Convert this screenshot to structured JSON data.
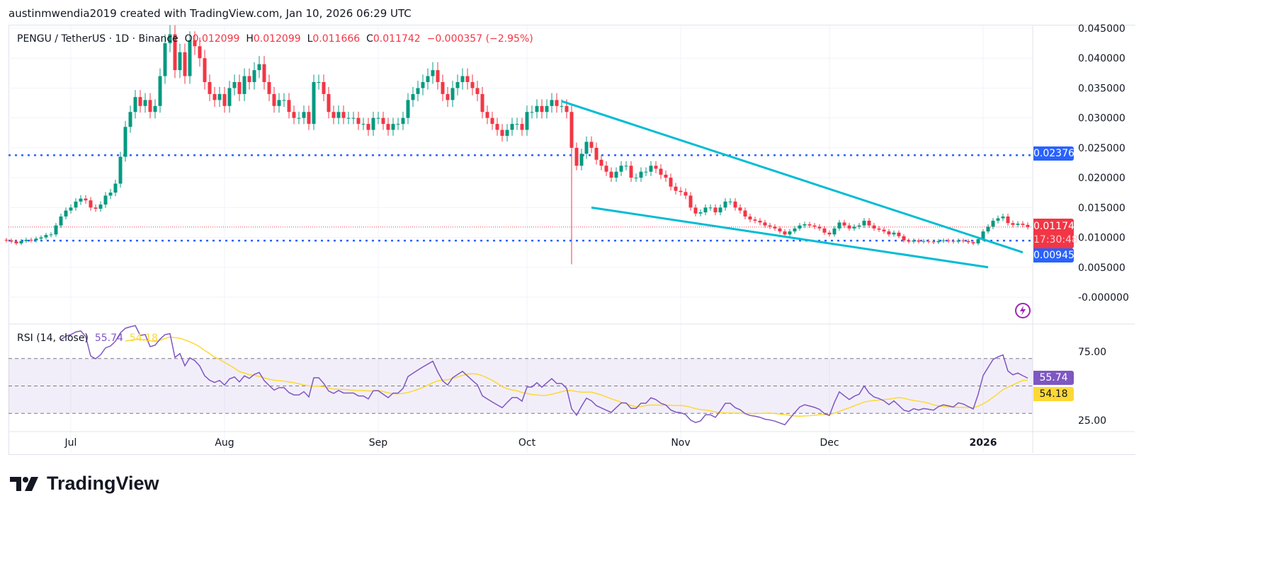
{
  "credit": "austinmwendia2019 created with TradingView.com, Jan 10, 2026 06:29 UTC",
  "legend": {
    "symbol": "PENGU / TetherUS · 1D · Binance",
    "o_label": "O",
    "o": "0.012099",
    "h_label": "H",
    "h": "0.012099",
    "l_label": "L",
    "l": "0.011666",
    "c_label": "C",
    "c": "0.011742",
    "change": "−0.000357 (−2.95%)"
  },
  "rsi_legend": {
    "label": "RSI (14, close)",
    "rsi": "55.74",
    "ma": "54.18"
  },
  "tags": {
    "resistance": "0.023763",
    "price": "0.011742",
    "countdown": "17:30:48",
    "support": "0.009453",
    "rsi": "55.74",
    "rsi_ma": "54.18"
  },
  "logo": "TradingView",
  "icons": {
    "alert": "lightning-bolt-icon"
  },
  "colors": {
    "up": "#089981",
    "down": "#f23645",
    "trendline": "#00bcd4",
    "level": "#2962ff",
    "rsi": "#7e57c2",
    "rsi_ma": "#fdd835",
    "rsi_band": "#7e57c2"
  },
  "chart_data": {
    "type": "candlestick",
    "symbol": "PENGU/USDT",
    "interval": "1D",
    "end_date": "2026-01-10",
    "price_ticks": [
      "0.045000",
      "0.040000",
      "0.035000",
      "0.030000",
      "0.025000",
      "0.020000",
      "0.015000",
      "0.010000",
      "0.005000",
      "-0.000000"
    ],
    "ylim": [
      0,
      0.045
    ],
    "x_ticks": [
      {
        "label": "Jul",
        "date": "2025-07-01"
      },
      {
        "label": "Aug",
        "date": "2025-08-01"
      },
      {
        "label": "Sep",
        "date": "2025-09-01"
      },
      {
        "label": "Oct",
        "date": "2025-10-01"
      },
      {
        "label": "Nov",
        "date": "2025-11-01"
      },
      {
        "label": "Dec",
        "date": "2025-12-01"
      },
      {
        "label": "2026",
        "date": "2026-01-01"
      }
    ],
    "close": [
      0.0098,
      0.0097,
      0.0096,
      0.0095,
      0.0093,
      0.009,
      0.0094,
      0.0096,
      0.0095,
      0.0098,
      0.01,
      0.0104,
      0.0105,
      0.012,
      0.0135,
      0.0145,
      0.015,
      0.016,
      0.0165,
      0.0162,
      0.015,
      0.0148,
      0.0155,
      0.017,
      0.0175,
      0.019,
      0.0235,
      0.0285,
      0.031,
      0.0335,
      0.032,
      0.033,
      0.031,
      0.032,
      0.037,
      0.0425,
      0.044,
      0.038,
      0.041,
      0.037,
      0.043,
      0.042,
      0.04,
      0.036,
      0.034,
      0.033,
      0.034,
      0.032,
      0.035,
      0.036,
      0.034,
      0.037,
      0.036,
      0.038,
      0.039,
      0.036,
      0.034,
      0.032,
      0.033,
      0.033,
      0.031,
      0.03,
      0.03,
      0.031,
      0.029,
      0.036,
      0.036,
      0.034,
      0.031,
      0.03,
      0.031,
      0.03,
      0.03,
      0.03,
      0.029,
      0.029,
      0.028,
      0.03,
      0.03,
      0.029,
      0.028,
      0.029,
      0.029,
      0.03,
      0.033,
      0.034,
      0.035,
      0.036,
      0.037,
      0.038,
      0.036,
      0.034,
      0.033,
      0.035,
      0.036,
      0.037,
      0.036,
      0.035,
      0.034,
      0.031,
      0.03,
      0.029,
      0.028,
      0.027,
      0.028,
      0.029,
      0.029,
      0.028,
      0.031,
      0.031,
      0.032,
      0.031,
      0.032,
      0.033,
      0.032,
      0.032,
      0.031,
      0.025,
      0.022,
      0.024,
      0.026,
      0.025,
      0.023,
      0.022,
      0.021,
      0.02,
      0.021,
      0.022,
      0.022,
      0.02,
      0.02,
      0.021,
      0.021,
      0.022,
      0.0215,
      0.0205,
      0.02,
      0.0185,
      0.0178,
      0.0176,
      0.017,
      0.015,
      0.014,
      0.0142,
      0.015,
      0.015,
      0.0142,
      0.015,
      0.016,
      0.016,
      0.015,
      0.0145,
      0.0135,
      0.013,
      0.0128,
      0.0125,
      0.012,
      0.0118,
      0.0115,
      0.011,
      0.0105,
      0.011,
      0.0115,
      0.012,
      0.0122,
      0.012,
      0.0118,
      0.0115,
      0.0108,
      0.0105,
      0.0115,
      0.0125,
      0.012,
      0.0115,
      0.0118,
      0.012,
      0.0128,
      0.012,
      0.0115,
      0.0113,
      0.011,
      0.0105,
      0.0108,
      0.0102,
      0.0095,
      0.0093,
      0.0095,
      0.0093,
      0.0094,
      0.0093,
      0.0092,
      0.0094,
      0.0095,
      0.0094,
      0.0093,
      0.0095,
      0.0094,
      0.0092,
      0.009,
      0.0097,
      0.011,
      0.0118,
      0.0128,
      0.0132,
      0.0135,
      0.0124,
      0.0121,
      0.0123,
      0.012099,
      0.011742
    ],
    "crash_low": {
      "date": "2025-10-10",
      "low": 0.0055
    },
    "horizontal_levels": [
      {
        "price": 0.023763,
        "style": "dotted"
      },
      {
        "price": 0.009453,
        "style": "dotted"
      }
    ],
    "last_price": 0.011742,
    "trendlines": [
      {
        "from": {
          "date": "2025-10-08",
          "price": 0.0328
        },
        "to": {
          "date": "2026-01-09",
          "price": 0.0075
        }
      },
      {
        "from": {
          "date": "2025-10-14",
          "price": 0.015
        },
        "to": {
          "date": "2026-01-02",
          "price": 0.005
        }
      }
    ],
    "rsi": {
      "length": 14,
      "source": "close",
      "ticks": [
        "75.00",
        "25.00"
      ],
      "band": [
        30,
        70
      ],
      "mid": 50,
      "last": 55.74,
      "ma_last": 54.18
    }
  }
}
